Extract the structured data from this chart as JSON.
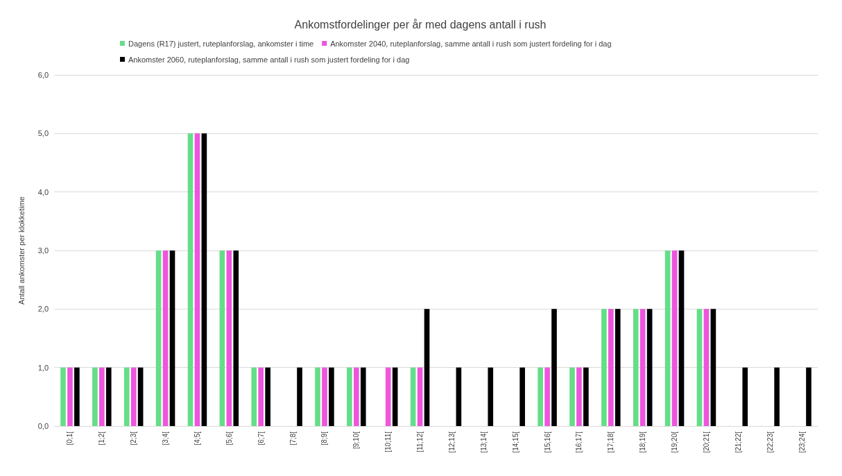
{
  "chart_data": {
    "type": "bar",
    "title": "Ankomstfordelinger per år med dagens antall i rush",
    "ylabel": "Antall ankomster per klokketime",
    "categories": [
      "[0;1[",
      "[1;2[",
      "[2;3[",
      "[3;4[",
      "[4;5[",
      "[5;6[",
      "[6;7[",
      "[7;8[",
      "[8;9[",
      "[9;10[",
      "[10;11[",
      "[11;12[",
      "[12;13[",
      "[13;14[",
      "[14;15[",
      "[15;16[",
      "[16;17[",
      "[17;18[",
      "[18;19[",
      "[19;20[",
      "[20;21[",
      "[21;22[",
      "[22;23[",
      "[23;24["
    ],
    "series": [
      {
        "name": "Dagens (R17) justert, ruteplanforslag, ankomster i time",
        "color": "#66dd88",
        "values": [
          1,
          1,
          1,
          3,
          5,
          3,
          1,
          0,
          1,
          1,
          0,
          1,
          0,
          0,
          0,
          1,
          1,
          2,
          2,
          3,
          2,
          0,
          0,
          0
        ]
      },
      {
        "name": "Ankomster 2040, ruteplanforslag, samme antall i rush som justert fordeling for i dag",
        "color": "#ee55dd",
        "values": [
          1,
          1,
          1,
          3,
          5,
          3,
          1,
          0,
          1,
          1,
          1,
          1,
          0,
          0,
          0,
          1,
          1,
          2,
          2,
          3,
          2,
          0,
          0,
          0
        ]
      },
      {
        "name": "Ankomster 2060, ruteplanforslag, samme antall i rush som justert fordeling for i dag",
        "color": "#000000",
        "values": [
          1,
          1,
          1,
          3,
          5,
          3,
          1,
          1,
          1,
          1,
          1,
          2,
          1,
          1,
          1,
          2,
          1,
          2,
          2,
          3,
          2,
          1,
          1,
          1
        ]
      }
    ],
    "ylim": [
      0,
      6
    ],
    "yticks": [
      {
        "value": 0,
        "label": "0,0"
      },
      {
        "value": 1,
        "label": "1,0"
      },
      {
        "value": 2,
        "label": "2,0"
      },
      {
        "value": 3,
        "label": "3,0"
      },
      {
        "value": 4,
        "label": "4,0"
      },
      {
        "value": 5,
        "label": "5,0"
      },
      {
        "value": 6,
        "label": "6,0"
      }
    ],
    "grid": "y",
    "legend": "top"
  }
}
